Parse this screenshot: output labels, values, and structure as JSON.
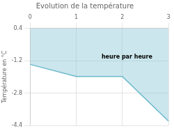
{
  "chart_data": {
    "type": "area",
    "title": "Evolution de la température",
    "y_label": "Température en °C",
    "series": [
      {
        "name": "Température",
        "color": "#6ab8cc",
        "x": [
          0,
          1,
          2,
          3
        ],
        "values": [
          -1.38,
          -1.98,
          -1.98,
          -4.18
        ],
        "baseline": 0.4
      }
    ],
    "xlim": [
      0,
      3
    ],
    "xticks": [
      0,
      1,
      2,
      3
    ],
    "ylim": [
      -4.4,
      0.4
    ],
    "yticks": [
      0.4,
      -1.2,
      -2.8,
      -4.4
    ],
    "grid": true,
    "annotations": [
      {
        "text": "heure par heure",
        "x": 1.55,
        "y": -1.1
      }
    ]
  }
}
